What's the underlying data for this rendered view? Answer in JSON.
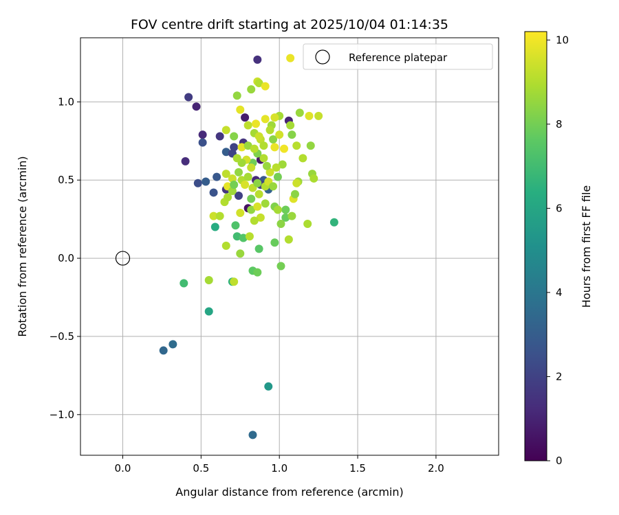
{
  "chart_data": {
    "type": "scatter",
    "title": "FOV centre drift starting at 2025/10/04 01:14:35",
    "xlabel": "Angular distance from reference (arcmin)",
    "ylabel": "Rotation from reference (arcmin)",
    "xlim": [
      -0.27,
      2.4
    ],
    "ylim": [
      -1.26,
      1.41
    ],
    "xticks": [
      0.0,
      0.5,
      1.0,
      1.5,
      2.0
    ],
    "xtick_labels": [
      "0.0",
      "0.5",
      "1.0",
      "1.5",
      "2.0"
    ],
    "yticks": [
      -1.0,
      -0.5,
      0.0,
      0.5,
      1.0
    ],
    "ytick_labels": [
      "−1.0",
      "−0.5",
      "0.0",
      "0.5",
      "1.0"
    ],
    "grid": true,
    "colormap": "viridis",
    "colorbar": {
      "label": "Hours from first FF file",
      "range": [
        0,
        10.2
      ],
      "ticks": [
        0,
        2,
        4,
        6,
        8,
        10
      ],
      "tick_labels": [
        "0",
        "2",
        "4",
        "6",
        "8",
        "10"
      ]
    },
    "reference_point": {
      "x": 0.0,
      "y": 0.0,
      "label": "Reference platepar"
    },
    "legend": {
      "position": "top-right",
      "label": "Reference platepar"
    },
    "points": [
      {
        "x": 0.86,
        "y": 1.27,
        "h": 1.4
      },
      {
        "x": 0.42,
        "y": 1.03,
        "h": 1.8
      },
      {
        "x": 0.47,
        "y": 0.97,
        "h": 1.0
      },
      {
        "x": 0.51,
        "y": 0.79,
        "h": 1.2
      },
      {
        "x": 0.51,
        "y": 0.74,
        "h": 2.5
      },
      {
        "x": 0.62,
        "y": 0.78,
        "h": 1.6
      },
      {
        "x": 0.4,
        "y": 0.62,
        "h": 1.3
      },
      {
        "x": 0.78,
        "y": 0.9,
        "h": 0.8
      },
      {
        "x": 1.06,
        "y": 0.88,
        "h": 1.0
      },
      {
        "x": 0.48,
        "y": 0.48,
        "h": 2.4
      },
      {
        "x": 0.53,
        "y": 0.49,
        "h": 3.0
      },
      {
        "x": 0.6,
        "y": 0.52,
        "h": 2.8
      },
      {
        "x": 0.58,
        "y": 0.42,
        "h": 2.6
      },
      {
        "x": 0.66,
        "y": 0.44,
        "h": 1.6
      },
      {
        "x": 0.66,
        "y": 0.68,
        "h": 3.0
      },
      {
        "x": 0.7,
        "y": 0.67,
        "h": 2.1
      },
      {
        "x": 0.71,
        "y": 0.71,
        "h": 2.0
      },
      {
        "x": 0.77,
        "y": 0.74,
        "h": 1.5
      },
      {
        "x": 0.74,
        "y": 0.4,
        "h": 2.0
      },
      {
        "x": 0.8,
        "y": 0.32,
        "h": 0.5
      },
      {
        "x": 0.93,
        "y": 0.44,
        "h": 3.2
      },
      {
        "x": 0.88,
        "y": 0.63,
        "h": 0.7
      },
      {
        "x": 0.85,
        "y": 0.5,
        "h": 1.2
      },
      {
        "x": 0.9,
        "y": 0.5,
        "h": 2.8
      },
      {
        "x": 0.88,
        "y": 0.47,
        "h": 1.9
      },
      {
        "x": 0.26,
        "y": -0.59,
        "h": 3.4
      },
      {
        "x": 0.32,
        "y": -0.55,
        "h": 3.6
      },
      {
        "x": 0.83,
        "y": -1.13,
        "h": 3.5
      },
      {
        "x": 0.93,
        "y": -0.82,
        "h": 5.4
      },
      {
        "x": 0.55,
        "y": -0.34,
        "h": 6.0
      },
      {
        "x": 0.39,
        "y": -0.16,
        "h": 7.0
      },
      {
        "x": 0.7,
        "y": -0.15,
        "h": 6.5
      },
      {
        "x": 0.59,
        "y": 0.2,
        "h": 6.3
      },
      {
        "x": 1.35,
        "y": 0.23,
        "h": 6.6
      },
      {
        "x": 0.72,
        "y": 0.21,
        "h": 7.3
      },
      {
        "x": 0.73,
        "y": 0.14,
        "h": 7.0
      },
      {
        "x": 0.77,
        "y": 0.13,
        "h": 7.4
      },
      {
        "x": 0.87,
        "y": 0.06,
        "h": 7.5
      },
      {
        "x": 0.97,
        "y": 0.1,
        "h": 7.8
      },
      {
        "x": 1.01,
        "y": -0.05,
        "h": 8.0
      },
      {
        "x": 0.83,
        "y": -0.08,
        "h": 7.6
      },
      {
        "x": 0.86,
        "y": -0.09,
        "h": 7.9
      },
      {
        "x": 0.75,
        "y": 0.03,
        "h": 8.6
      },
      {
        "x": 0.55,
        "y": -0.14,
        "h": 8.8
      },
      {
        "x": 0.71,
        "y": -0.15,
        "h": 9.2
      },
      {
        "x": 0.66,
        "y": 0.08,
        "h": 9.0
      },
      {
        "x": 0.81,
        "y": 0.14,
        "h": 9.1
      },
      {
        "x": 1.06,
        "y": 0.12,
        "h": 9.0
      },
      {
        "x": 1.18,
        "y": 0.22,
        "h": 8.9
      },
      {
        "x": 1.04,
        "y": 0.26,
        "h": 7.8
      },
      {
        "x": 1.01,
        "y": 0.22,
        "h": 8.4
      },
      {
        "x": 1.08,
        "y": 0.27,
        "h": 8.6
      },
      {
        "x": 1.04,
        "y": 0.31,
        "h": 7.9
      },
      {
        "x": 0.97,
        "y": 0.33,
        "h": 8.2
      },
      {
        "x": 0.99,
        "y": 0.31,
        "h": 8.8
      },
      {
        "x": 0.58,
        "y": 0.27,
        "h": 9.4
      },
      {
        "x": 0.62,
        "y": 0.27,
        "h": 9.0
      },
      {
        "x": 0.75,
        "y": 0.29,
        "h": 9.5
      },
      {
        "x": 0.88,
        "y": 0.26,
        "h": 9.3
      },
      {
        "x": 0.84,
        "y": 0.24,
        "h": 9.0
      },
      {
        "x": 0.82,
        "y": 0.31,
        "h": 8.5
      },
      {
        "x": 0.86,
        "y": 0.33,
        "h": 9.6
      },
      {
        "x": 0.91,
        "y": 0.35,
        "h": 8.7
      },
      {
        "x": 0.82,
        "y": 0.38,
        "h": 8.0
      },
      {
        "x": 1.09,
        "y": 0.38,
        "h": 9.7
      },
      {
        "x": 1.1,
        "y": 0.41,
        "h": 8.4
      },
      {
        "x": 1.12,
        "y": 0.49,
        "h": 8.7
      },
      {
        "x": 1.11,
        "y": 0.48,
        "h": 9.4
      },
      {
        "x": 1.21,
        "y": 0.54,
        "h": 8.6
      },
      {
        "x": 1.22,
        "y": 0.51,
        "h": 8.9
      },
      {
        "x": 1.15,
        "y": 0.64,
        "h": 9.0
      },
      {
        "x": 1.2,
        "y": 0.72,
        "h": 8.5
      },
      {
        "x": 1.11,
        "y": 0.72,
        "h": 9.1
      },
      {
        "x": 1.08,
        "y": 0.79,
        "h": 8.3
      },
      {
        "x": 1.07,
        "y": 0.85,
        "h": 8.8
      },
      {
        "x": 1.13,
        "y": 0.93,
        "h": 8.6
      },
      {
        "x": 1.19,
        "y": 0.91,
        "h": 9.7
      },
      {
        "x": 1.25,
        "y": 0.91,
        "h": 9.3
      },
      {
        "x": 1.0,
        "y": 0.91,
        "h": 8.8
      },
      {
        "x": 0.97,
        "y": 0.9,
        "h": 9.6
      },
      {
        "x": 0.95,
        "y": 0.85,
        "h": 8.7
      },
      {
        "x": 0.94,
        "y": 0.82,
        "h": 9.0
      },
      {
        "x": 0.91,
        "y": 0.89,
        "h": 9.8
      },
      {
        "x": 0.85,
        "y": 0.86,
        "h": 9.9
      },
      {
        "x": 0.8,
        "y": 0.85,
        "h": 9.2
      },
      {
        "x": 0.75,
        "y": 0.95,
        "h": 9.8
      },
      {
        "x": 0.73,
        "y": 1.04,
        "h": 8.5
      },
      {
        "x": 0.82,
        "y": 1.08,
        "h": 8.6
      },
      {
        "x": 0.86,
        "y": 1.13,
        "h": 9.4
      },
      {
        "x": 0.87,
        "y": 1.12,
        "h": 9.0
      },
      {
        "x": 0.91,
        "y": 1.1,
        "h": 9.9
      },
      {
        "x": 1.07,
        "y": 1.28,
        "h": 9.9
      },
      {
        "x": 0.66,
        "y": 0.82,
        "h": 9.3
      },
      {
        "x": 0.71,
        "y": 0.78,
        "h": 8.3
      },
      {
        "x": 0.76,
        "y": 0.71,
        "h": 9.8
      },
      {
        "x": 0.84,
        "y": 0.8,
        "h": 8.8
      },
      {
        "x": 0.88,
        "y": 0.76,
        "h": 9.2
      },
      {
        "x": 0.9,
        "y": 0.72,
        "h": 9.0
      },
      {
        "x": 0.96,
        "y": 0.76,
        "h": 8.4
      },
      {
        "x": 0.97,
        "y": 0.71,
        "h": 9.9
      },
      {
        "x": 1.0,
        "y": 0.79,
        "h": 9.5
      },
      {
        "x": 1.03,
        "y": 0.7,
        "h": 10.0
      },
      {
        "x": 1.02,
        "y": 0.6,
        "h": 8.7
      },
      {
        "x": 0.98,
        "y": 0.58,
        "h": 9.1
      },
      {
        "x": 0.99,
        "y": 0.52,
        "h": 8.0
      },
      {
        "x": 0.94,
        "y": 0.55,
        "h": 9.4
      },
      {
        "x": 0.92,
        "y": 0.59,
        "h": 8.6
      },
      {
        "x": 0.9,
        "y": 0.64,
        "h": 9.0
      },
      {
        "x": 0.86,
        "y": 0.67,
        "h": 8.2
      },
      {
        "x": 0.83,
        "y": 0.61,
        "h": 7.9
      },
      {
        "x": 0.82,
        "y": 0.58,
        "h": 9.3
      },
      {
        "x": 0.79,
        "y": 0.63,
        "h": 9.5
      },
      {
        "x": 0.76,
        "y": 0.61,
        "h": 8.7
      },
      {
        "x": 0.73,
        "y": 0.64,
        "h": 8.9
      },
      {
        "x": 0.74,
        "y": 0.55,
        "h": 8.5
      },
      {
        "x": 0.76,
        "y": 0.5,
        "h": 9.0
      },
      {
        "x": 0.78,
        "y": 0.47,
        "h": 9.6
      },
      {
        "x": 0.8,
        "y": 0.52,
        "h": 8.8
      },
      {
        "x": 0.83,
        "y": 0.45,
        "h": 9.2
      },
      {
        "x": 0.86,
        "y": 0.48,
        "h": 8.4
      },
      {
        "x": 0.87,
        "y": 0.41,
        "h": 9.1
      },
      {
        "x": 0.91,
        "y": 0.46,
        "h": 9.0
      },
      {
        "x": 0.93,
        "y": 0.49,
        "h": 9.5
      },
      {
        "x": 0.96,
        "y": 0.46,
        "h": 8.6
      },
      {
        "x": 0.66,
        "y": 0.54,
        "h": 9.2
      },
      {
        "x": 0.7,
        "y": 0.51,
        "h": 9.4
      },
      {
        "x": 0.67,
        "y": 0.46,
        "h": 9.8
      },
      {
        "x": 0.7,
        "y": 0.43,
        "h": 8.7
      },
      {
        "x": 0.65,
        "y": 0.36,
        "h": 9.0
      },
      {
        "x": 0.67,
        "y": 0.39,
        "h": 8.9
      },
      {
        "x": 0.71,
        "y": 0.47,
        "h": 8.0
      },
      {
        "x": 0.8,
        "y": 0.72,
        "h": 8.6
      },
      {
        "x": 0.84,
        "y": 0.7,
        "h": 9.1
      },
      {
        "x": 0.87,
        "y": 0.78,
        "h": 9.4
      }
    ]
  }
}
